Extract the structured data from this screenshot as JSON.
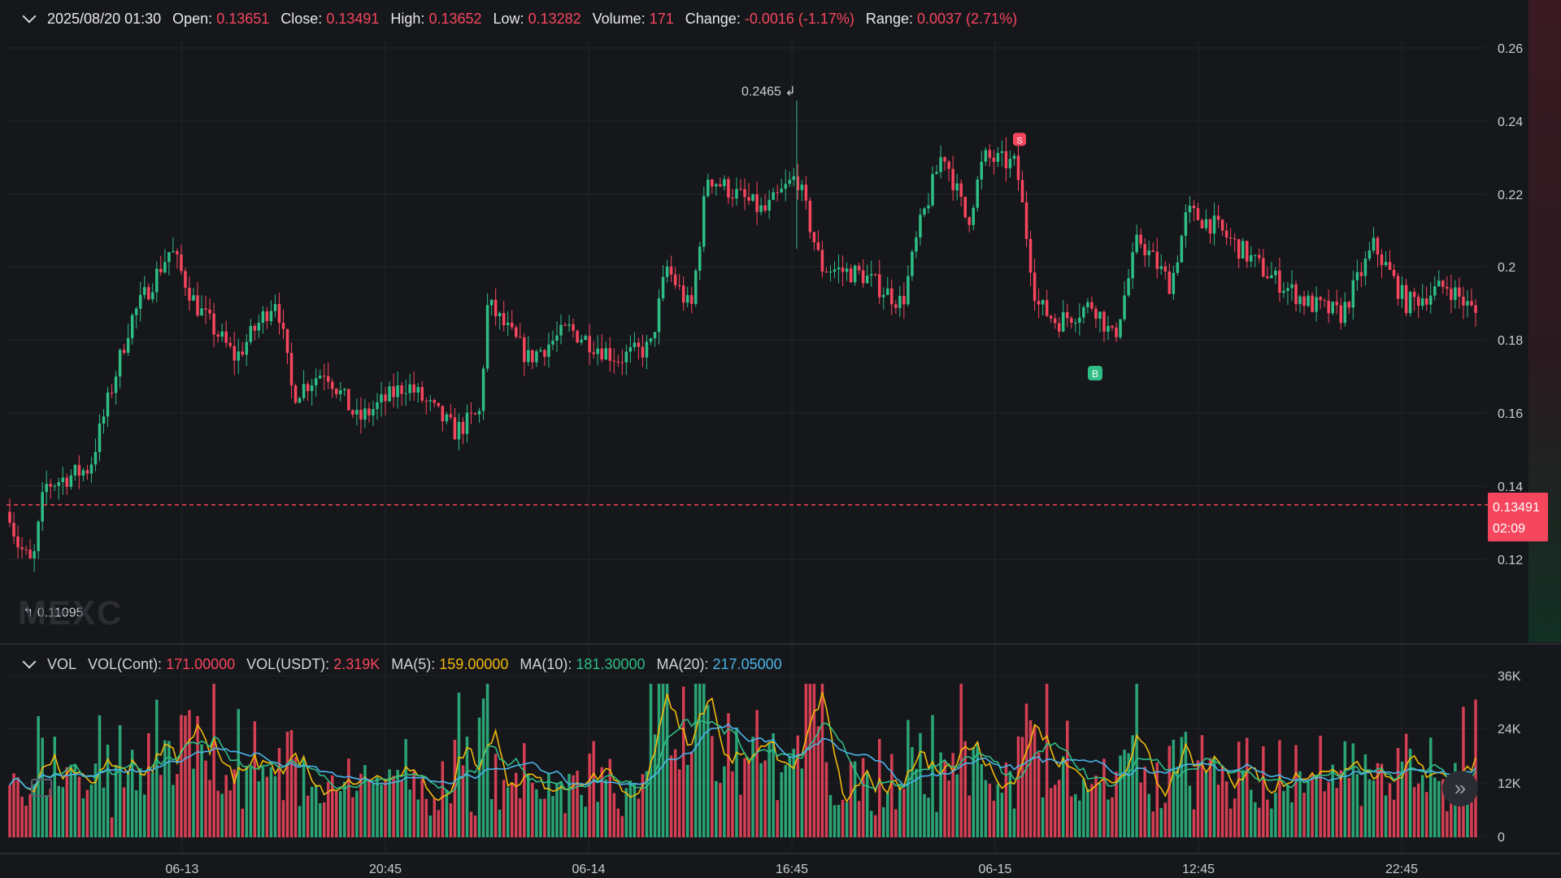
{
  "header": {
    "datetime": "2025/08/20 01:30",
    "fields": [
      {
        "label": "Open:",
        "value": "0.13651"
      },
      {
        "label": "Close:",
        "value": "0.13491"
      },
      {
        "label": "High:",
        "value": "0.13652"
      },
      {
        "label": "Low:",
        "value": "0.13282"
      },
      {
        "label": "Volume:",
        "value": "171"
      },
      {
        "label": "Change:",
        "value": "-0.0016 (-1.17%)"
      },
      {
        "label": "Range:",
        "value": "0.0037 (2.71%)"
      }
    ]
  },
  "volume_header": {
    "title": "VOL",
    "vol_cont_label": "VOL(Cont):",
    "vol_cont_value": "171.00000",
    "vol_usdt_label": "VOL(USDT):",
    "vol_usdt_value": "2.319K",
    "ma5_label": "MA(5):",
    "ma5_value": "159.00000",
    "ma10_label": "MA(10):",
    "ma10_value": "181.30000",
    "ma20_label": "MA(20):",
    "ma20_value": "217.05000"
  },
  "price_tag": {
    "price": "0.13491",
    "countdown": "02:09"
  },
  "watermark": "MEXC",
  "colors": {
    "up": "#2ebd85",
    "down": "#f6465d",
    "ma5": "#f0b90b",
    "ma10": "#2ebd85",
    "ma20": "#4ab3e8",
    "grid": "#24262c",
    "background": "#16171b"
  },
  "icons": {
    "collapse": "chevron-down-icon",
    "expand": "double-chevron-right-icon",
    "calendar": "calendar-icon"
  },
  "chart_data": [
    {
      "type": "candlestick",
      "y_ticks": [
        "0.26",
        "0.24",
        "0.22",
        "0.2",
        "0.18",
        "0.16",
        "0.14",
        "0.12"
      ],
      "ylim": [
        0.1,
        0.27
      ],
      "x_ticks": [
        "06-13",
        "20:45",
        "06-14",
        "16:45",
        "06-15",
        "12:45",
        "22:45"
      ],
      "current_price": 0.13491,
      "annotations": [
        {
          "text": "0.2465",
          "kind": "max",
          "value": 0.2465
        },
        {
          "text": "0.11095",
          "kind": "min",
          "value": 0.11095
        }
      ],
      "markers": [
        {
          "label": "S",
          "price": 0.235
        },
        {
          "label": "B",
          "price": 0.178
        }
      ],
      "grid": true
    },
    {
      "type": "bar",
      "name": "VOL",
      "y_ticks": [
        "36K",
        "24K",
        "12K",
        "0"
      ],
      "ylim": [
        0,
        36000
      ],
      "series": [
        "MA(5)",
        "MA(10)",
        "MA(20)"
      ]
    }
  ]
}
